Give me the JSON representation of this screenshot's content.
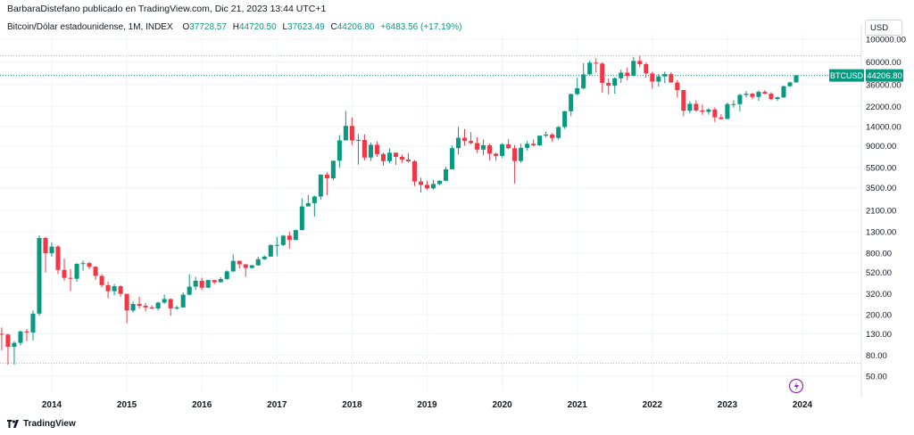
{
  "header": {
    "publisher_line": "BarbaraDistefano publicado en TradingView.com, Dic 21, 2023 13:44 UTC+1"
  },
  "legend": {
    "symbol_line": "Bitcoin/Dólar estadounidense, 1M, INDEX",
    "o_label": "O",
    "o_value": "37728.57",
    "h_label": "H",
    "h_value": "44720.50",
    "l_label": "L",
    "l_value": "37623.49",
    "c_label": "C",
    "c_value": "44206.80",
    "change": "+6483.56 (+17.19%)"
  },
  "currency_button": "USD",
  "price_tag": {
    "symbol": "BTCUSD",
    "value": "44206.80"
  },
  "footer": {
    "brand": "TradingView"
  },
  "colors": {
    "up": "#089981",
    "down": "#f23645",
    "grid": "#f0f3fa",
    "text": "#131722",
    "last_line": "#089981",
    "flash": "#9c27b0"
  },
  "icons": {
    "flash": "lightning-icon",
    "logo": "tradingview-logo-icon"
  },
  "chart_data": {
    "type": "candlestick",
    "interval": "1M",
    "y_scale": "log",
    "ylim": [
      40,
      120000
    ],
    "yticks": [
      "100000.00",
      "60000.00",
      "36000.00",
      "22000.00",
      "14000.00",
      "9000.00",
      "5500.00",
      "3500.00",
      "2100.00",
      "1300.00",
      "800.00",
      "520.00",
      "320.00",
      "200.00",
      "130.00",
      "80.00",
      "50.00"
    ],
    "xticks": [
      "2014",
      "2015",
      "2016",
      "2017",
      "2018",
      "2019",
      "2020",
      "2021",
      "2022",
      "2023",
      "2024"
    ],
    "high_line": 69000,
    "low_line": 67,
    "last_price": 44206.8,
    "candles": [
      {
        "t": "2013-05",
        "o": 130,
        "h": 150,
        "l": 90,
        "c": 128
      },
      {
        "t": "2013-06",
        "o": 128,
        "h": 130,
        "l": 65,
        "c": 97
      },
      {
        "t": "2013-07",
        "o": 97,
        "h": 110,
        "l": 65,
        "c": 106
      },
      {
        "t": "2013-08",
        "o": 106,
        "h": 140,
        "l": 100,
        "c": 137
      },
      {
        "t": "2013-09",
        "o": 137,
        "h": 145,
        "l": 110,
        "c": 134
      },
      {
        "t": "2013-10",
        "o": 134,
        "h": 220,
        "l": 112,
        "c": 205
      },
      {
        "t": "2013-11",
        "o": 205,
        "h": 1200,
        "l": 195,
        "c": 1130
      },
      {
        "t": "2013-12",
        "o": 1130,
        "h": 1160,
        "l": 520,
        "c": 800
      },
      {
        "t": "2014-01",
        "o": 800,
        "h": 1020,
        "l": 740,
        "c": 930
      },
      {
        "t": "2014-02",
        "o": 930,
        "h": 960,
        "l": 500,
        "c": 550
      },
      {
        "t": "2014-03",
        "o": 550,
        "h": 710,
        "l": 430,
        "c": 460
      },
      {
        "t": "2014-04",
        "o": 460,
        "h": 560,
        "l": 340,
        "c": 450
      },
      {
        "t": "2014-05",
        "o": 450,
        "h": 640,
        "l": 420,
        "c": 630
      },
      {
        "t": "2014-06",
        "o": 630,
        "h": 680,
        "l": 540,
        "c": 640
      },
      {
        "t": "2014-07",
        "o": 640,
        "h": 660,
        "l": 560,
        "c": 590
      },
      {
        "t": "2014-08",
        "o": 590,
        "h": 600,
        "l": 440,
        "c": 480
      },
      {
        "t": "2014-09",
        "o": 480,
        "h": 500,
        "l": 370,
        "c": 390
      },
      {
        "t": "2014-10",
        "o": 390,
        "h": 420,
        "l": 290,
        "c": 340
      },
      {
        "t": "2014-11",
        "o": 340,
        "h": 400,
        "l": 310,
        "c": 380
      },
      {
        "t": "2014-12",
        "o": 380,
        "h": 390,
        "l": 300,
        "c": 320
      },
      {
        "t": "2015-01",
        "o": 320,
        "h": 320,
        "l": 165,
        "c": 220
      },
      {
        "t": "2015-02",
        "o": 220,
        "h": 270,
        "l": 210,
        "c": 255
      },
      {
        "t": "2015-03",
        "o": 255,
        "h": 300,
        "l": 230,
        "c": 245
      },
      {
        "t": "2015-04",
        "o": 245,
        "h": 260,
        "l": 215,
        "c": 236
      },
      {
        "t": "2015-05",
        "o": 236,
        "h": 247,
        "l": 227,
        "c": 230
      },
      {
        "t": "2015-06",
        "o": 230,
        "h": 268,
        "l": 220,
        "c": 263
      },
      {
        "t": "2015-07",
        "o": 263,
        "h": 315,
        "l": 255,
        "c": 285
      },
      {
        "t": "2015-08",
        "o": 285,
        "h": 290,
        "l": 195,
        "c": 230
      },
      {
        "t": "2015-09",
        "o": 230,
        "h": 245,
        "l": 225,
        "c": 236
      },
      {
        "t": "2015-10",
        "o": 236,
        "h": 330,
        "l": 235,
        "c": 314
      },
      {
        "t": "2015-11",
        "o": 314,
        "h": 500,
        "l": 310,
        "c": 377
      },
      {
        "t": "2015-12",
        "o": 377,
        "h": 470,
        "l": 350,
        "c": 430
      },
      {
        "t": "2016-01",
        "o": 430,
        "h": 460,
        "l": 350,
        "c": 368
      },
      {
        "t": "2016-02",
        "o": 368,
        "h": 440,
        "l": 365,
        "c": 437
      },
      {
        "t": "2016-03",
        "o": 437,
        "h": 440,
        "l": 400,
        "c": 416
      },
      {
        "t": "2016-04",
        "o": 416,
        "h": 465,
        "l": 415,
        "c": 448
      },
      {
        "t": "2016-05",
        "o": 448,
        "h": 545,
        "l": 440,
        "c": 531
      },
      {
        "t": "2016-06",
        "o": 531,
        "h": 780,
        "l": 527,
        "c": 673
      },
      {
        "t": "2016-07",
        "o": 673,
        "h": 680,
        "l": 570,
        "c": 624
      },
      {
        "t": "2016-08",
        "o": 624,
        "h": 625,
        "l": 470,
        "c": 575
      },
      {
        "t": "2016-09",
        "o": 575,
        "h": 615,
        "l": 565,
        "c": 609
      },
      {
        "t": "2016-10",
        "o": 609,
        "h": 740,
        "l": 605,
        "c": 700
      },
      {
        "t": "2016-11",
        "o": 700,
        "h": 760,
        "l": 690,
        "c": 742
      },
      {
        "t": "2016-12",
        "o": 742,
        "h": 975,
        "l": 745,
        "c": 963
      },
      {
        "t": "2017-01",
        "o": 963,
        "h": 1160,
        "l": 750,
        "c": 965
      },
      {
        "t": "2017-02",
        "o": 965,
        "h": 1210,
        "l": 940,
        "c": 1190
      },
      {
        "t": "2017-03",
        "o": 1190,
        "h": 1300,
        "l": 890,
        "c": 1080
      },
      {
        "t": "2017-04",
        "o": 1080,
        "h": 1360,
        "l": 1075,
        "c": 1350
      },
      {
        "t": "2017-05",
        "o": 1350,
        "h": 2760,
        "l": 1340,
        "c": 2300
      },
      {
        "t": "2017-06",
        "o": 2300,
        "h": 2980,
        "l": 2300,
        "c": 2480
      },
      {
        "t": "2017-07",
        "o": 2480,
        "h": 2940,
        "l": 1830,
        "c": 2875
      },
      {
        "t": "2017-08",
        "o": 2875,
        "h": 4750,
        "l": 2670,
        "c": 4710
      },
      {
        "t": "2017-09",
        "o": 4710,
        "h": 4980,
        "l": 2970,
        "c": 4340
      },
      {
        "t": "2017-10",
        "o": 4340,
        "h": 6450,
        "l": 4150,
        "c": 6450
      },
      {
        "t": "2017-11",
        "o": 6450,
        "h": 11500,
        "l": 5500,
        "c": 10200
      },
      {
        "t": "2017-12",
        "o": 10200,
        "h": 19800,
        "l": 10800,
        "c": 14150
      },
      {
        "t": "2018-01",
        "o": 14150,
        "h": 17200,
        "l": 9200,
        "c": 10200
      },
      {
        "t": "2018-02",
        "o": 10200,
        "h": 11800,
        "l": 5900,
        "c": 10300
      },
      {
        "t": "2018-03",
        "o": 10300,
        "h": 11700,
        "l": 6500,
        "c": 6930
      },
      {
        "t": "2018-04",
        "o": 6930,
        "h": 9750,
        "l": 6420,
        "c": 9240
      },
      {
        "t": "2018-05",
        "o": 9240,
        "h": 9990,
        "l": 7040,
        "c": 7500
      },
      {
        "t": "2018-06",
        "o": 7500,
        "h": 7760,
        "l": 5780,
        "c": 6390
      },
      {
        "t": "2018-07",
        "o": 6390,
        "h": 8500,
        "l": 6100,
        "c": 7730
      },
      {
        "t": "2018-08",
        "o": 7730,
        "h": 7760,
        "l": 5880,
        "c": 7030
      },
      {
        "t": "2018-09",
        "o": 7030,
        "h": 7410,
        "l": 6140,
        "c": 6630
      },
      {
        "t": "2018-10",
        "o": 6630,
        "h": 7680,
        "l": 6200,
        "c": 6370
      },
      {
        "t": "2018-11",
        "o": 6370,
        "h": 6560,
        "l": 3650,
        "c": 4040
      },
      {
        "t": "2018-12",
        "o": 4040,
        "h": 4400,
        "l": 3150,
        "c": 3740
      },
      {
        "t": "2019-01",
        "o": 3740,
        "h": 4100,
        "l": 3350,
        "c": 3460
      },
      {
        "t": "2019-02",
        "o": 3460,
        "h": 4200,
        "l": 3360,
        "c": 3820
      },
      {
        "t": "2019-03",
        "o": 3820,
        "h": 4150,
        "l": 3730,
        "c": 4100
      },
      {
        "t": "2019-04",
        "o": 4100,
        "h": 5630,
        "l": 4090,
        "c": 5320
      },
      {
        "t": "2019-05",
        "o": 5320,
        "h": 9100,
        "l": 5300,
        "c": 8570
      },
      {
        "t": "2019-06",
        "o": 8570,
        "h": 13880,
        "l": 7460,
        "c": 10820
      },
      {
        "t": "2019-07",
        "o": 10820,
        "h": 13200,
        "l": 9080,
        "c": 10080
      },
      {
        "t": "2019-08",
        "o": 10080,
        "h": 12320,
        "l": 9350,
        "c": 9600
      },
      {
        "t": "2019-09",
        "o": 9600,
        "h": 10950,
        "l": 7700,
        "c": 8290
      },
      {
        "t": "2019-10",
        "o": 8290,
        "h": 10370,
        "l": 7300,
        "c": 9150
      },
      {
        "t": "2019-11",
        "o": 9150,
        "h": 9500,
        "l": 6520,
        "c": 7560
      },
      {
        "t": "2019-12",
        "o": 7560,
        "h": 7750,
        "l": 6430,
        "c": 7190
      },
      {
        "t": "2020-01",
        "o": 7190,
        "h": 9580,
        "l": 6870,
        "c": 9350
      },
      {
        "t": "2020-02",
        "o": 9350,
        "h": 10500,
        "l": 8400,
        "c": 8540
      },
      {
        "t": "2020-03",
        "o": 8540,
        "h": 9190,
        "l": 3860,
        "c": 6410
      },
      {
        "t": "2020-04",
        "o": 6410,
        "h": 9460,
        "l": 6160,
        "c": 8630
      },
      {
        "t": "2020-05",
        "o": 8630,
        "h": 10060,
        "l": 8110,
        "c": 9450
      },
      {
        "t": "2020-06",
        "o": 9450,
        "h": 10380,
        "l": 8900,
        "c": 9140
      },
      {
        "t": "2020-07",
        "o": 9140,
        "h": 11440,
        "l": 8990,
        "c": 11350
      },
      {
        "t": "2020-08",
        "o": 11350,
        "h": 12470,
        "l": 10900,
        "c": 11650
      },
      {
        "t": "2020-09",
        "o": 11650,
        "h": 12070,
        "l": 9880,
        "c": 10780
      },
      {
        "t": "2020-10",
        "o": 10780,
        "h": 14100,
        "l": 10370,
        "c": 13800
      },
      {
        "t": "2020-11",
        "o": 13800,
        "h": 19860,
        "l": 13220,
        "c": 19700
      },
      {
        "t": "2020-12",
        "o": 19700,
        "h": 29300,
        "l": 17600,
        "c": 28990
      },
      {
        "t": "2021-01",
        "o": 28990,
        "h": 41950,
        "l": 28130,
        "c": 33110
      },
      {
        "t": "2021-02",
        "o": 33110,
        "h": 58350,
        "l": 32300,
        "c": 45240
      },
      {
        "t": "2021-03",
        "o": 45240,
        "h": 61780,
        "l": 44950,
        "c": 58920
      },
      {
        "t": "2021-04",
        "o": 58920,
        "h": 64860,
        "l": 47000,
        "c": 57720
      },
      {
        "t": "2021-05",
        "o": 57720,
        "h": 59600,
        "l": 30000,
        "c": 37330
      },
      {
        "t": "2021-06",
        "o": 37330,
        "h": 41330,
        "l": 28800,
        "c": 35040
      },
      {
        "t": "2021-07",
        "o": 35040,
        "h": 42320,
        "l": 29280,
        "c": 41460
      },
      {
        "t": "2021-08",
        "o": 41460,
        "h": 50500,
        "l": 37330,
        "c": 47100
      },
      {
        "t": "2021-09",
        "o": 47100,
        "h": 52850,
        "l": 39600,
        "c": 43790
      },
      {
        "t": "2021-10",
        "o": 43790,
        "h": 67000,
        "l": 43290,
        "c": 61300
      },
      {
        "t": "2021-11",
        "o": 61300,
        "h": 69000,
        "l": 53250,
        "c": 57000
      },
      {
        "t": "2021-12",
        "o": 57000,
        "h": 59100,
        "l": 42000,
        "c": 46200
      },
      {
        "t": "2022-01",
        "o": 46200,
        "h": 47990,
        "l": 32930,
        "c": 38470
      },
      {
        "t": "2022-02",
        "o": 38470,
        "h": 45800,
        "l": 34320,
        "c": 43160
      },
      {
        "t": "2022-03",
        "o": 43160,
        "h": 48190,
        "l": 37160,
        "c": 45520
      },
      {
        "t": "2022-04",
        "o": 45520,
        "h": 47440,
        "l": 37700,
        "c": 37640
      },
      {
        "t": "2022-05",
        "o": 37640,
        "h": 39980,
        "l": 26700,
        "c": 31790
      },
      {
        "t": "2022-06",
        "o": 31790,
        "h": 31960,
        "l": 17600,
        "c": 19920
      },
      {
        "t": "2022-07",
        "o": 19920,
        "h": 24660,
        "l": 18780,
        "c": 23300
      },
      {
        "t": "2022-08",
        "o": 23300,
        "h": 25200,
        "l": 19520,
        "c": 20050
      },
      {
        "t": "2022-09",
        "o": 20050,
        "h": 22800,
        "l": 18150,
        "c": 19430
      },
      {
        "t": "2022-10",
        "o": 19430,
        "h": 21000,
        "l": 18200,
        "c": 20490
      },
      {
        "t": "2022-11",
        "o": 20490,
        "h": 21470,
        "l": 15480,
        "c": 17160
      },
      {
        "t": "2022-12",
        "o": 17160,
        "h": 18390,
        "l": 16280,
        "c": 16540
      },
      {
        "t": "2023-01",
        "o": 16540,
        "h": 23950,
        "l": 16500,
        "c": 23130
      },
      {
        "t": "2023-02",
        "o": 23130,
        "h": 25250,
        "l": 21350,
        "c": 23140
      },
      {
        "t": "2023-03",
        "o": 23140,
        "h": 29190,
        "l": 19570,
        "c": 28480
      },
      {
        "t": "2023-04",
        "o": 28480,
        "h": 31000,
        "l": 26940,
        "c": 29250
      },
      {
        "t": "2023-05",
        "o": 29250,
        "h": 29830,
        "l": 25800,
        "c": 27210
      },
      {
        "t": "2023-06",
        "o": 27210,
        "h": 31440,
        "l": 24800,
        "c": 30480
      },
      {
        "t": "2023-07",
        "o": 30480,
        "h": 31800,
        "l": 28860,
        "c": 29230
      },
      {
        "t": "2023-08",
        "o": 29230,
        "h": 30230,
        "l": 25300,
        "c": 25930
      },
      {
        "t": "2023-09",
        "o": 25930,
        "h": 27500,
        "l": 24900,
        "c": 26970
      },
      {
        "t": "2023-10",
        "o": 26970,
        "h": 35000,
        "l": 26550,
        "c": 34650
      },
      {
        "t": "2023-11",
        "o": 34650,
        "h": 38430,
        "l": 34090,
        "c": 37720
      },
      {
        "t": "2023-12",
        "o": 37728.57,
        "h": 44720.5,
        "l": 37623.49,
        "c": 44206.8
      }
    ]
  }
}
